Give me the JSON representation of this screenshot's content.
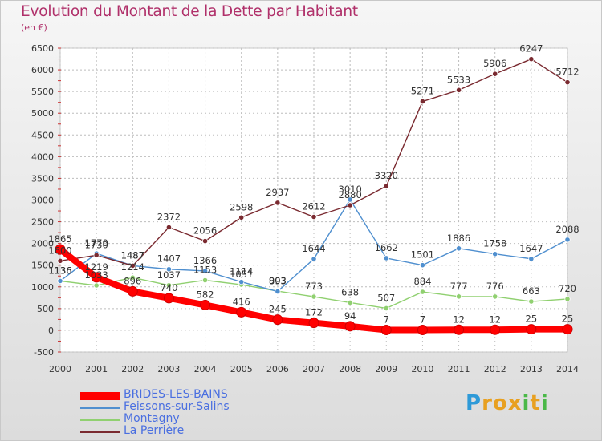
{
  "chart_data": {
    "type": "line",
    "title": "Evolution du Montant de la Dette par Habitant",
    "subtitle": "(en €)",
    "x": [
      "2000",
      "2001",
      "2002",
      "2003",
      "2004",
      "2005",
      "2006",
      "2007",
      "2008",
      "2009",
      "2010",
      "2011",
      "2012",
      "2013",
      "2014"
    ],
    "ylim": [
      -500,
      6500
    ],
    "yticks": [
      -500,
      0,
      500,
      1000,
      1500,
      2000,
      2500,
      3000,
      3500,
      4000,
      4500,
      5000,
      5500,
      6000,
      6500
    ],
    "grid": true,
    "legend_position": "bottom-left",
    "series": [
      {
        "name": "BRIDES-LES-BAINS",
        "color": "#ff0000",
        "values": [
          1865,
          1219,
          896,
          740,
          582,
          416,
          245,
          172,
          94,
          7,
          7,
          12,
          12,
          25,
          25
        ]
      },
      {
        "name": "Feissons-sur-Salins",
        "color": "#4f8fcf",
        "values": [
          1136,
          1770,
          1487,
          1407,
          1366,
          1114,
          893,
          1644,
          3010,
          1662,
          1501,
          1886,
          1758,
          1647,
          2088
        ]
      },
      {
        "name": "Montagny",
        "color": "#90d070",
        "values": [
          1136,
          1033,
          1214,
          1037,
          1153,
          1051,
          903,
          773,
          638,
          507,
          884,
          777,
          776,
          663,
          720
        ]
      },
      {
        "name": "La Perrière",
        "color": "#7a2a30",
        "values": [
          1600,
          1730,
          1487,
          2372,
          2056,
          2598,
          2937,
          2612,
          2880,
          3320,
          5271,
          5533,
          5906,
          6247,
          5712
        ]
      }
    ]
  },
  "logo": {
    "letters": [
      "P",
      "r",
      "o",
      "x",
      "i",
      "t",
      "i"
    ],
    "colors": [
      "#2e9ad8",
      "#e8a020",
      "#e8a020",
      "#e8a020",
      "#4ab848",
      "#e8a020",
      "#4ab848"
    ]
  }
}
